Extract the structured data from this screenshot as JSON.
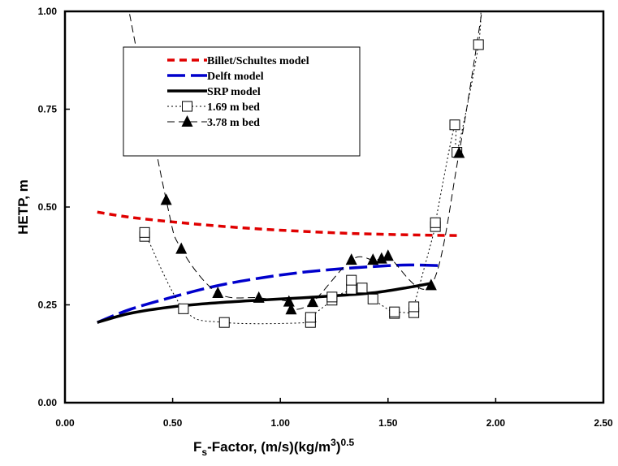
{
  "chart_data": {
    "type": "line",
    "title": "",
    "xlabel": {
      "main": "F",
      "sub": "s",
      "rest": "-Factor, (m/s)(kg/m",
      "sup3": "3",
      "close": ")",
      "sup": "0.5"
    },
    "ylabel": "HETP,  m",
    "xlim": [
      0,
      2.5
    ],
    "ylim": [
      0,
      1.0
    ],
    "xticks": [
      "0.00",
      "0.50",
      "1.00",
      "1.50",
      "2.00",
      "2.50"
    ],
    "yticks": [
      "0.00",
      "0.25",
      "0.50",
      "0.75",
      "1.00"
    ],
    "grid": false,
    "legend_position": "top-left",
    "series": [
      {
        "name": "Billet/Schultes model",
        "style": "short-dash",
        "color": "#e00000",
        "markers": false,
        "x": [
          0.15,
          0.3,
          0.5,
          0.7,
          0.9,
          1.1,
          1.3,
          1.5,
          1.7,
          1.82
        ],
        "y": [
          0.487,
          0.474,
          0.462,
          0.452,
          0.444,
          0.438,
          0.433,
          0.43,
          0.428,
          0.427
        ]
      },
      {
        "name": "Delft model",
        "style": "long-dash",
        "color": "#0000cc",
        "markers": false,
        "x": [
          0.15,
          0.3,
          0.5,
          0.7,
          0.9,
          1.1,
          1.3,
          1.5,
          1.6,
          1.75
        ],
        "y": [
          0.205,
          0.238,
          0.27,
          0.298,
          0.318,
          0.333,
          0.343,
          0.35,
          0.352,
          0.35
        ]
      },
      {
        "name": "SRP model",
        "style": "solid",
        "color": "#000000",
        "markers": false,
        "x": [
          0.15,
          0.3,
          0.5,
          0.7,
          0.9,
          1.1,
          1.3,
          1.45,
          1.6,
          1.7
        ],
        "y": [
          0.205,
          0.228,
          0.245,
          0.255,
          0.262,
          0.268,
          0.275,
          0.282,
          0.295,
          0.305
        ]
      },
      {
        "name": "1.69 m bed",
        "style": "dotted",
        "color": "#000000",
        "markers": "open-square",
        "x": [
          0.37,
          0.37,
          0.55,
          0.74,
          1.14,
          1.14,
          1.24,
          1.24,
          1.33,
          1.33,
          1.38,
          1.43,
          1.53,
          1.53,
          1.62,
          1.62,
          1.72,
          1.72,
          1.81,
          1.82,
          1.92
        ],
        "y": [
          0.425,
          0.435,
          0.24,
          0.205,
          0.205,
          0.218,
          0.262,
          0.27,
          0.29,
          0.313,
          0.293,
          0.265,
          0.228,
          0.232,
          0.23,
          0.245,
          0.45,
          0.46,
          0.71,
          0.64,
          0.915
        ]
      },
      {
        "name": "3.78 m bed",
        "style": "dashed",
        "color": "#000000",
        "markers": "filled-triangle",
        "x": [
          0.47,
          0.54,
          0.71,
          0.9,
          1.04,
          1.05,
          1.15,
          1.33,
          1.43,
          1.47,
          1.5,
          1.7,
          1.83
        ],
        "y": [
          0.518,
          0.393,
          0.28,
          0.268,
          0.258,
          0.238,
          0.257,
          0.365,
          0.365,
          0.368,
          0.375,
          0.3,
          0.638
        ]
      }
    ]
  }
}
